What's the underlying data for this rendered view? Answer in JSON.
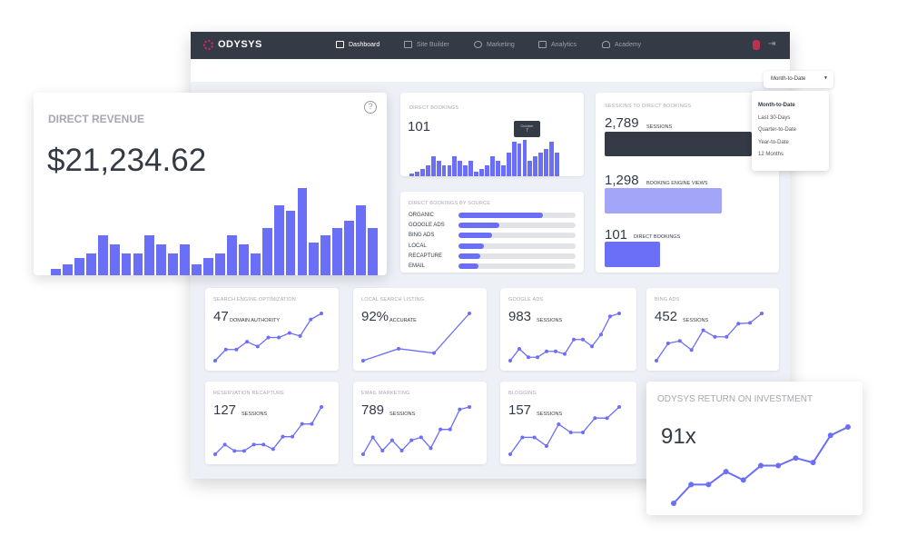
{
  "nav": {
    "brand": "ODYSYS",
    "items": [
      {
        "label": "Dashboard",
        "icon": "dashboard-icon"
      },
      {
        "label": "Site Builder",
        "icon": "monitor-icon"
      },
      {
        "label": "Marketing",
        "icon": "target-icon"
      },
      {
        "label": "Analytics",
        "icon": "chart-icon"
      },
      {
        "label": "Academy",
        "icon": "graduation-cap-icon"
      }
    ]
  },
  "range": {
    "selected": "Month-to-Date",
    "options": [
      "Month-to-Date",
      "Last 30-Days",
      "Quarter-to-Date",
      "Year-to-Date",
      "12 Months"
    ]
  },
  "revenue": {
    "title": "DIRECT REVENUE",
    "value": "$21,234.62",
    "bars": [
      20,
      35,
      55,
      72,
      130,
      100,
      72,
      72,
      130,
      100,
      72,
      100,
      35,
      55,
      72,
      130,
      100,
      72,
      155,
      230,
      212,
      285,
      108,
      130,
      155,
      178,
      230,
      155
    ]
  },
  "bookings": {
    "title": "DIRECT BOOKINGS",
    "value": "101",
    "tooltip_label": "October",
    "tooltip_value": "7",
    "bars": [
      8,
      15,
      22,
      33,
      62,
      48,
      33,
      33,
      62,
      48,
      33,
      48,
      15,
      22,
      33,
      62,
      48,
      33,
      72,
      105,
      98,
      110,
      48,
      62,
      72,
      82,
      105,
      72
    ]
  },
  "sources": {
    "title": "DIRECT BOOKINGS BY SOURCE",
    "items": [
      {
        "label": "ORGANIC",
        "share": 0.72
      },
      {
        "label": "GOOGLE ADS",
        "share": 0.35
      },
      {
        "label": "BING ADS",
        "share": 0.29
      },
      {
        "label": "LOCAL",
        "share": 0.22
      },
      {
        "label": "RECAPTURE",
        "share": 0.185
      },
      {
        "label": "EMAIL",
        "share": 0.17
      }
    ]
  },
  "funnel": {
    "title": "SESSIONS TO DIRECT BOOKINGS",
    "steps": [
      {
        "value": "2,789",
        "label": "SESSIONS",
        "color": "#343a46"
      },
      {
        "value": "1,298",
        "label": "BOOKING ENGINE VIEWS",
        "color": "#a3a5f8"
      },
      {
        "value": "101",
        "label": "DIRECT BOOKINGS",
        "color": "#6b6ef6"
      }
    ]
  },
  "metrics": [
    {
      "title": "SEARCH ENGINE OPTIMIZATION",
      "value": "47",
      "unit": "DOMAIN AUTHORITY",
      "series": [
        20,
        57,
        57,
        83,
        67,
        97,
        97,
        112,
        102,
        157,
        177
      ]
    },
    {
      "title": "LOCAL SEARCH LISTING",
      "value": "92%",
      "unit": "ACCURATE",
      "series": [
        16,
        38,
        30,
        103
      ]
    },
    {
      "title": "GOOGLE ADS",
      "value": "983",
      "unit": "SESSIONS",
      "series": [
        22,
        50,
        30,
        30,
        44,
        44,
        38,
        72,
        72,
        56,
        84,
        127,
        134
      ]
    },
    {
      "title": "BING ADS",
      "value": "452",
      "unit": "SESSIONS",
      "series": [
        25,
        67,
        73,
        51,
        99,
        83,
        83,
        115,
        117,
        140
      ]
    },
    {
      "title": "RESERVATION RECAPTURE",
      "value": "127",
      "unit": "SESSIONS",
      "series": [
        0,
        32,
        11,
        11,
        32,
        32,
        17,
        58,
        58,
        100,
        100,
        156
      ]
    },
    {
      "title": "EMAIL MARKETING",
      "value": "789",
      "unit": "SESSIONS",
      "series": [
        0,
        28,
        6,
        23,
        6,
        23,
        28,
        10,
        41,
        41,
        74,
        78
      ]
    },
    {
      "title": "BLOGGING",
      "value": "157",
      "unit": "SESSIONS",
      "series": [
        0,
        41,
        41,
        20,
        73,
        53,
        53,
        88,
        88,
        115
      ]
    }
  ],
  "roi": {
    "title": "ODYSYS RETURN ON INVESTMENT",
    "value": "91x",
    "series": [
      0,
      62,
      62,
      105,
      77,
      125,
      125,
      150,
      135,
      225,
      253
    ]
  },
  "colors": {
    "accent": "#6b6ef6",
    "dark": "#343a46"
  }
}
